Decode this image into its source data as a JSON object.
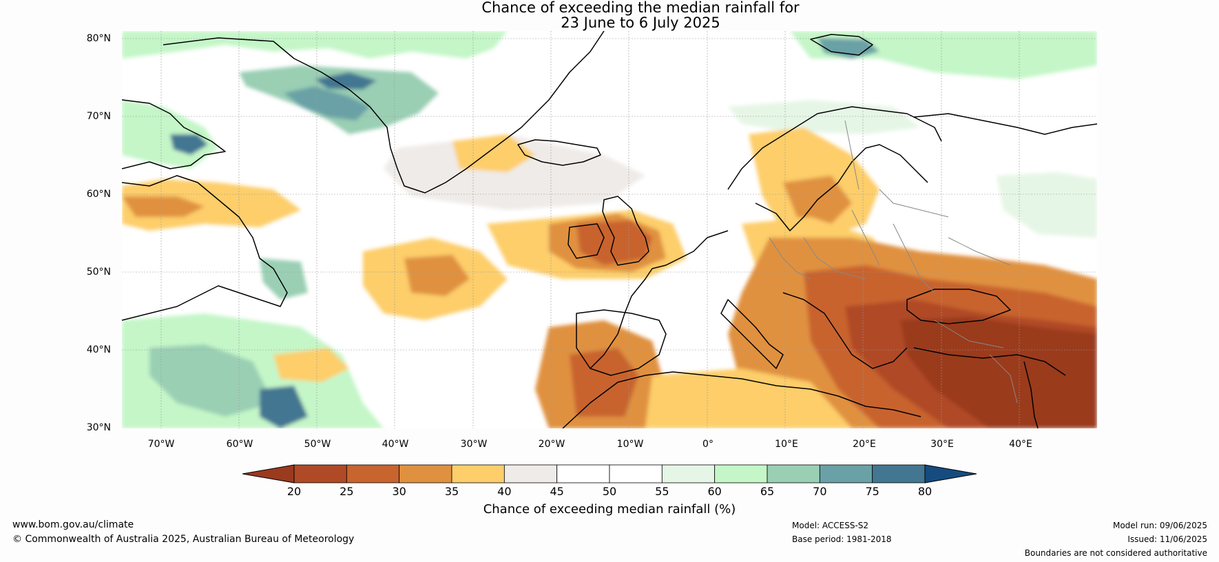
{
  "title": {
    "line1": "Chance of exceeding the median rainfall for",
    "line2": "23 June to 6 July 2025"
  },
  "map": {
    "latitude_labels": [
      "80°N",
      "70°N",
      "60°N",
      "50°N",
      "40°N",
      "30°N"
    ],
    "longitude_labels": [
      "70°W",
      "60°W",
      "50°W",
      "40°W",
      "30°W",
      "20°W",
      "10°W",
      "0°",
      "10°E",
      "20°E",
      "30°E",
      "40°E"
    ],
    "extent": {
      "lon_min": -75,
      "lon_max": 50,
      "lat_min": 30,
      "lat_max": 81
    }
  },
  "colorbar": {
    "label": "Chance of exceeding median rainfall (%)",
    "ticks": [
      "20",
      "25",
      "30",
      "35",
      "40",
      "45",
      "50",
      "55",
      "60",
      "65",
      "70",
      "75",
      "80"
    ],
    "colors": {
      "below_20": "#9a3a1e",
      "20_25": "#b04a26",
      "25_30": "#c8642e",
      "30_35": "#e0913f",
      "35_40": "#fdce6a",
      "40_45": "#efebe8",
      "45_50": "#ffffff",
      "50_55": "#ffffff",
      "55_60": "#e6f6e6",
      "60_65": "#c4f6c8",
      "65_70": "#9acfb4",
      "70_75": "#6aa1a6",
      "75_80": "#437691",
      "above_80": "#164b80"
    }
  },
  "footer": {
    "website": "www.bom.gov.au/climate",
    "copyright": "© Commonwealth of Australia 2025, Australian Bureau of Meteorology",
    "model": "Model: ACCESS-S2",
    "base_period": "Base period: 1981-2018",
    "model_run": "Model run: 09/06/2025",
    "issued": "Issued: 11/06/2025",
    "disclaimer": "Boundaries are not considered authoritative"
  }
}
